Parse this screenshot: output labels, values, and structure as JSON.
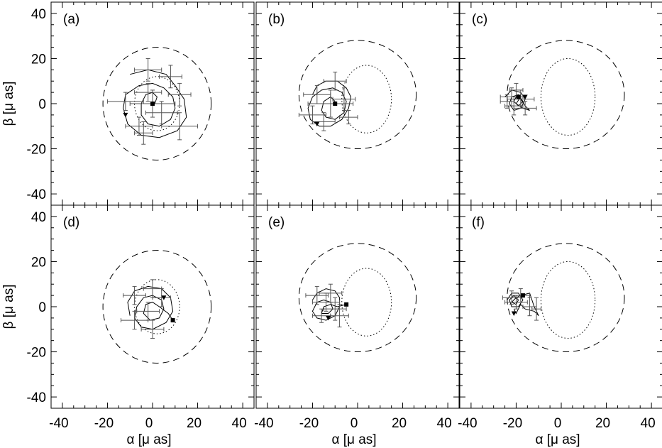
{
  "axes": {
    "xlabel": "α [μ as]",
    "ylabel": "β [μ as]",
    "xticks": [
      "-40",
      "-20",
      "0",
      "20",
      "40"
    ],
    "yticks": [
      "-40",
      "-20",
      "0",
      "20",
      "40"
    ]
  },
  "chart_data": [
    {
      "type": "scatter",
      "panel": "(a)",
      "xlim": [
        -45,
        45
      ],
      "ylim": [
        -45,
        45
      ],
      "grid": false,
      "dashed_ellipse": {
        "cx": 2,
        "cy": 0,
        "rx": 24,
        "ry": 25
      },
      "dotted_ellipse": {
        "cx": 2,
        "cy": 0,
        "rx": 10,
        "ry": 12
      },
      "track": [
        [
          -10,
          13
        ],
        [
          -2,
          15
        ],
        [
          6,
          13
        ],
        [
          10,
          8
        ],
        [
          14,
          2
        ],
        [
          15,
          -6
        ],
        [
          11,
          -12
        ],
        [
          3,
          -15
        ],
        [
          -5,
          -14
        ],
        [
          -11,
          -9
        ],
        [
          -13,
          -2
        ],
        [
          -12,
          4
        ],
        [
          -6,
          8
        ],
        [
          0,
          9
        ],
        [
          5,
          7
        ],
        [
          9,
          3
        ],
        [
          10,
          -2
        ],
        [
          8,
          -7
        ],
        [
          3,
          -10
        ],
        [
          -2,
          -9
        ],
        [
          -5,
          -5
        ],
        [
          -5,
          0
        ],
        [
          -3,
          4
        ],
        [
          0,
          5
        ],
        [
          2,
          3
        ],
        [
          1,
          0
        ]
      ],
      "errors": [
        {
          "x": -2,
          "y": 15,
          "ex": 6,
          "ey": 5
        },
        {
          "x": 8,
          "y": 12,
          "ex": 5,
          "ey": 5
        },
        {
          "x": -12,
          "y": 1,
          "ex": 8,
          "ey": 4
        },
        {
          "x": 0,
          "y": 0,
          "ex": 10,
          "ey": 6
        },
        {
          "x": 4,
          "y": -4,
          "ex": 7,
          "ey": 5
        },
        {
          "x": 12,
          "y": -10,
          "ex": 8,
          "ey": 6
        },
        {
          "x": -6,
          "y": -10,
          "ex": 6,
          "ey": 4
        },
        {
          "x": -4,
          "y": -13,
          "ex": 4,
          "ey": 5
        },
        {
          "x": 12,
          "y": 4,
          "ex": 5,
          "ey": 5
        },
        {
          "x": -2,
          "y": 5,
          "ex": 6,
          "ey": 4
        }
      ],
      "start_marker": {
        "x": -12,
        "y": -5
      },
      "end_marker": {
        "x": 0,
        "y": 0
      }
    },
    {
      "type": "scatter",
      "panel": "(b)",
      "xlim": [
        -45,
        45
      ],
      "ylim": [
        -45,
        45
      ],
      "grid": false,
      "dashed_ellipse": {
        "cx": 0,
        "cy": 4,
        "rx": 26,
        "ry": 24
      },
      "dotted_ellipse": {
        "cx": 4,
        "cy": 2,
        "rx": 11,
        "ry": 15
      },
      "track": [
        [
          -20,
          4
        ],
        [
          -18,
          8
        ],
        [
          -14,
          10
        ],
        [
          -9,
          10
        ],
        [
          -5,
          7
        ],
        [
          -3,
          3
        ],
        [
          -4,
          -2
        ],
        [
          -7,
          -7
        ],
        [
          -12,
          -10
        ],
        [
          -17,
          -10
        ],
        [
          -21,
          -7
        ],
        [
          -22,
          -2
        ],
        [
          -20,
          3
        ],
        [
          -16,
          6
        ],
        [
          -11,
          7
        ],
        [
          -7,
          5
        ],
        [
          -5,
          1
        ],
        [
          -6,
          -4
        ],
        [
          -10,
          -7
        ],
        [
          -14,
          -6
        ],
        [
          -16,
          -3
        ],
        [
          -15,
          1
        ],
        [
          -12,
          3
        ],
        [
          -10,
          1
        ]
      ],
      "errors": [
        {
          "x": -10,
          "y": 10,
          "ex": 5,
          "ey": 4
        },
        {
          "x": -18,
          "y": 4,
          "ex": 6,
          "ey": 4
        },
        {
          "x": -12,
          "y": 0,
          "ex": 10,
          "ey": 6
        },
        {
          "x": -20,
          "y": -5,
          "ex": 6,
          "ey": 4
        },
        {
          "x": -4,
          "y": -6,
          "ex": 4,
          "ey": 3
        },
        {
          "x": -15,
          "y": -8,
          "ex": 5,
          "ey": 4
        },
        {
          "x": -6,
          "y": 2,
          "ex": 5,
          "ey": 5
        }
      ],
      "start_marker": {
        "x": -18,
        "y": -9
      },
      "end_marker": {
        "x": -10,
        "y": 0
      }
    },
    {
      "type": "scatter",
      "panel": "(c)",
      "xlim": [
        -45,
        45
      ],
      "ylim": [
        -45,
        45
      ],
      "grid": false,
      "dashed_ellipse": {
        "cx": 2,
        "cy": 4,
        "rx": 26,
        "ry": 24
      },
      "dotted_ellipse": {
        "cx": 3,
        "cy": 3,
        "rx": 12,
        "ry": 17
      },
      "track": [
        [
          -25,
          3
        ],
        [
          -22,
          6
        ],
        [
          -18,
          5
        ],
        [
          -16,
          2
        ],
        [
          -18,
          -2
        ],
        [
          -21,
          -3
        ],
        [
          -23,
          0
        ],
        [
          -22,
          3
        ],
        [
          -19,
          4
        ],
        [
          -17,
          1
        ],
        [
          -19,
          -1
        ],
        [
          -21,
          1
        ],
        [
          -20,
          3
        ],
        [
          -18,
          2
        ],
        [
          -16,
          -1
        ],
        [
          -14,
          -3
        ],
        [
          -17,
          -2
        ],
        [
          -20,
          0
        ],
        [
          -18,
          3
        ]
      ],
      "errors": [
        {
          "x": -22,
          "y": 3,
          "ex": 5,
          "ey": 4
        },
        {
          "x": -20,
          "y": 6,
          "ex": 3,
          "ey": 3
        },
        {
          "x": -18,
          "y": 2,
          "ex": 6,
          "ey": 4
        },
        {
          "x": -21,
          "y": -1,
          "ex": 4,
          "ey": 4
        },
        {
          "x": -16,
          "y": -2,
          "ex": 5,
          "ey": 3
        },
        {
          "x": -24,
          "y": 1,
          "ex": 3,
          "ey": 3
        }
      ],
      "start_marker": {
        "x": -16,
        "y": 3
      },
      "end_marker": {
        "x": -19,
        "y": 3
      }
    },
    {
      "type": "scatter",
      "panel": "(d)",
      "xlim": [
        -45,
        45
      ],
      "ylim": [
        -45,
        45
      ],
      "grid": false,
      "dashed_ellipse": {
        "cx": 2,
        "cy": 0,
        "rx": 24,
        "ry": 25
      },
      "dotted_ellipse": {
        "cx": 2,
        "cy": 0,
        "rx": 10,
        "ry": 12
      },
      "track": [
        [
          -10,
          -4
        ],
        [
          -11,
          2
        ],
        [
          -8,
          7
        ],
        [
          -2,
          9
        ],
        [
          4,
          8
        ],
        [
          8,
          4
        ],
        [
          9,
          -2
        ],
        [
          6,
          -7
        ],
        [
          0,
          -10
        ],
        [
          -5,
          -9
        ],
        [
          -8,
          -5
        ],
        [
          -7,
          0
        ],
        [
          -4,
          4
        ],
        [
          0,
          5
        ],
        [
          4,
          3
        ],
        [
          5,
          -1
        ],
        [
          3,
          -5
        ],
        [
          -1,
          -6
        ],
        [
          -4,
          -3
        ],
        [
          -3,
          1
        ],
        [
          0,
          2
        ],
        [
          3,
          0
        ],
        [
          7,
          -3
        ],
        [
          9,
          -6
        ]
      ],
      "errors": [
        {
          "x": -8,
          "y": 5,
          "ex": 5,
          "ey": 4
        },
        {
          "x": 0,
          "y": 8,
          "ex": 4,
          "ey": 4
        },
        {
          "x": 4,
          "y": 4,
          "ex": 4,
          "ey": 4
        },
        {
          "x": -2,
          "y": -2,
          "ex": 5,
          "ey": 4
        },
        {
          "x": -8,
          "y": -6,
          "ex": 6,
          "ey": 4
        },
        {
          "x": 0,
          "y": -10,
          "ex": 5,
          "ey": 4
        }
      ],
      "start_marker": {
        "x": 5,
        "y": 4
      },
      "end_marker": {
        "x": 9,
        "y": -6
      }
    },
    {
      "type": "scatter",
      "panel": "(e)",
      "xlim": [
        -45,
        45
      ],
      "ylim": [
        -45,
        45
      ],
      "grid": false,
      "dashed_ellipse": {
        "cx": 0,
        "cy": 4,
        "rx": 26,
        "ry": 24
      },
      "dotted_ellipse": {
        "cx": 4,
        "cy": 2,
        "rx": 11,
        "ry": 15
      },
      "track": [
        [
          -20,
          3
        ],
        [
          -18,
          6
        ],
        [
          -14,
          8
        ],
        [
          -10,
          7
        ],
        [
          -8,
          4
        ],
        [
          -8,
          0
        ],
        [
          -10,
          -4
        ],
        [
          -14,
          -6
        ],
        [
          -18,
          -5
        ],
        [
          -20,
          -2
        ],
        [
          -18,
          2
        ],
        [
          -15,
          3
        ],
        [
          -12,
          2
        ],
        [
          -11,
          -1
        ],
        [
          -13,
          -3
        ],
        [
          -16,
          -3
        ],
        [
          -15,
          0
        ],
        [
          -12,
          1
        ],
        [
          -9,
          0
        ],
        [
          -5,
          1
        ]
      ],
      "errors": [
        {
          "x": -18,
          "y": 5,
          "ex": 5,
          "ey": 4
        },
        {
          "x": -14,
          "y": 2,
          "ex": 6,
          "ey": 4
        },
        {
          "x": -10,
          "y": -1,
          "ex": 5,
          "ey": 5
        },
        {
          "x": -16,
          "y": -4,
          "ex": 4,
          "ey": 3
        },
        {
          "x": -12,
          "y": 6,
          "ex": 5,
          "ey": 4
        },
        {
          "x": -8,
          "y": -4,
          "ex": 4,
          "ey": 5
        }
      ],
      "start_marker": {
        "x": -13,
        "y": -5
      },
      "end_marker": {
        "x": -5,
        "y": 1
      }
    },
    {
      "type": "scatter",
      "panel": "(f)",
      "xlim": [
        -45,
        45
      ],
      "ylim": [
        -45,
        45
      ],
      "grid": false,
      "dashed_ellipse": {
        "cx": 2,
        "cy": 4,
        "rx": 26,
        "ry": 24
      },
      "dotted_ellipse": {
        "cx": 3,
        "cy": 3,
        "rx": 12,
        "ry": 17
      },
      "track": [
        [
          -24,
          3
        ],
        [
          -22,
          6
        ],
        [
          -19,
          6
        ],
        [
          -17,
          3
        ],
        [
          -19,
          0
        ],
        [
          -22,
          0
        ],
        [
          -23,
          3
        ],
        [
          -21,
          5
        ],
        [
          -19,
          3
        ],
        [
          -20,
          1
        ],
        [
          -22,
          2
        ],
        [
          -20,
          4
        ],
        [
          -18,
          5
        ],
        [
          -14,
          6
        ],
        [
          -12,
          0
        ],
        [
          -10,
          -4
        ],
        [
          -12,
          -2
        ],
        [
          -16,
          -1
        ],
        [
          -18,
          1
        ],
        [
          -20,
          -3
        ],
        [
          -21,
          -1
        ]
      ],
      "errors": [
        {
          "x": -22,
          "y": 4,
          "ex": 4,
          "ey": 3
        },
        {
          "x": -20,
          "y": 2,
          "ex": 5,
          "ey": 3
        },
        {
          "x": -18,
          "y": 5,
          "ex": 4,
          "ey": 3
        },
        {
          "x": -14,
          "y": 0,
          "ex": 3,
          "ey": 4
        },
        {
          "x": -11,
          "y": -1,
          "ex": 2,
          "ey": 5
        }
      ],
      "start_marker": {
        "x": -21,
        "y": -3
      },
      "end_marker": {
        "x": -17,
        "y": 5
      }
    }
  ]
}
